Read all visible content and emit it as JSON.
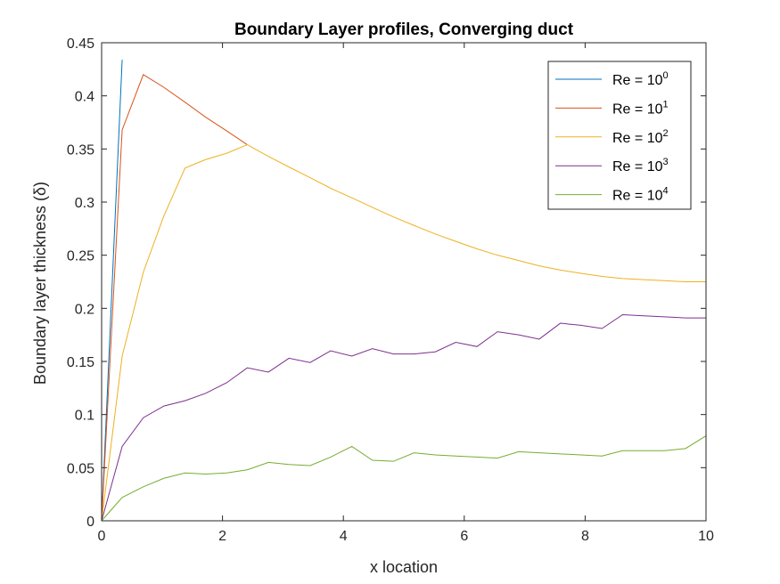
{
  "chart_data": {
    "type": "line",
    "title": "Boundary Layer profiles, Converging duct",
    "xlabel": "x location",
    "ylabel": "Boundary layer thickness (δ)",
    "xlim": [
      0,
      10
    ],
    "ylim": [
      0,
      0.45
    ],
    "xticks": [
      0,
      2,
      4,
      6,
      8,
      10
    ],
    "yticks": [
      0,
      0.05,
      0.1,
      0.15,
      0.2,
      0.25,
      0.3,
      0.35,
      0.4,
      0.45
    ],
    "grid": false,
    "legend_position": "top-right",
    "series": [
      {
        "name": "Re = 10",
        "exponent": "0",
        "color": "#0072BD",
        "x": [
          0,
          0.34
        ],
        "y": [
          0,
          0.434
        ]
      },
      {
        "name": "Re = 10",
        "exponent": "1",
        "color": "#D95319",
        "x": [
          0,
          0.34,
          0.69,
          1.03,
          1.38,
          1.72,
          2.07,
          2.41
        ],
        "y": [
          0,
          0.368,
          0.42,
          0.408,
          0.394,
          0.38,
          0.367,
          0.354
        ]
      },
      {
        "name": "Re = 10",
        "exponent": "2",
        "color": "#EDB120",
        "x": [
          0,
          0.34,
          0.69,
          1.03,
          1.38,
          1.72,
          2.07,
          2.41,
          2.76,
          3.1,
          3.45,
          3.79,
          4.14,
          4.48,
          4.83,
          5.17,
          5.52,
          5.86,
          6.21,
          6.55,
          6.9,
          7.24,
          7.59,
          7.93,
          8.28,
          8.62,
          8.97,
          9.31,
          9.66,
          10
        ],
        "y": [
          0,
          0.155,
          0.234,
          0.287,
          0.332,
          0.34,
          0.346,
          0.354,
          0.343,
          0.333,
          0.323,
          0.313,
          0.304,
          0.295,
          0.286,
          0.278,
          0.27,
          0.263,
          0.256,
          0.25,
          0.245,
          0.24,
          0.236,
          0.233,
          0.23,
          0.228,
          0.227,
          0.226,
          0.225,
          0.225
        ]
      },
      {
        "name": "Re = 10",
        "exponent": "3",
        "color": "#7E2F8E",
        "x": [
          0,
          0.34,
          0.69,
          1.03,
          1.38,
          1.72,
          2.07,
          2.41,
          2.76,
          3.1,
          3.45,
          3.79,
          4.14,
          4.48,
          4.83,
          5.17,
          5.52,
          5.86,
          6.21,
          6.55,
          6.9,
          7.24,
          7.59,
          7.93,
          8.28,
          8.62,
          8.97,
          9.31,
          9.66,
          10
        ],
        "y": [
          0,
          0.07,
          0.097,
          0.108,
          0.113,
          0.12,
          0.13,
          0.144,
          0.14,
          0.153,
          0.149,
          0.16,
          0.155,
          0.162,
          0.157,
          0.157,
          0.159,
          0.168,
          0.164,
          0.178,
          0.175,
          0.171,
          0.186,
          0.184,
          0.181,
          0.194,
          0.193,
          0.192,
          0.191,
          0.191
        ]
      },
      {
        "name": "Re = 10",
        "exponent": "4",
        "color": "#77AC30",
        "x": [
          0,
          0.34,
          0.69,
          1.03,
          1.38,
          1.72,
          2.07,
          2.41,
          2.76,
          3.1,
          3.45,
          3.79,
          4.14,
          4.48,
          4.83,
          5.17,
          5.52,
          5.86,
          6.21,
          6.55,
          6.9,
          7.24,
          7.59,
          7.93,
          8.28,
          8.62,
          8.97,
          9.31,
          9.66,
          10
        ],
        "y": [
          0,
          0.022,
          0.032,
          0.04,
          0.045,
          0.044,
          0.045,
          0.048,
          0.055,
          0.053,
          0.052,
          0.06,
          0.07,
          0.057,
          0.056,
          0.064,
          0.062,
          0.061,
          0.06,
          0.059,
          0.065,
          0.064,
          0.063,
          0.062,
          0.061,
          0.066,
          0.066,
          0.066,
          0.068,
          0.08
        ]
      }
    ]
  }
}
